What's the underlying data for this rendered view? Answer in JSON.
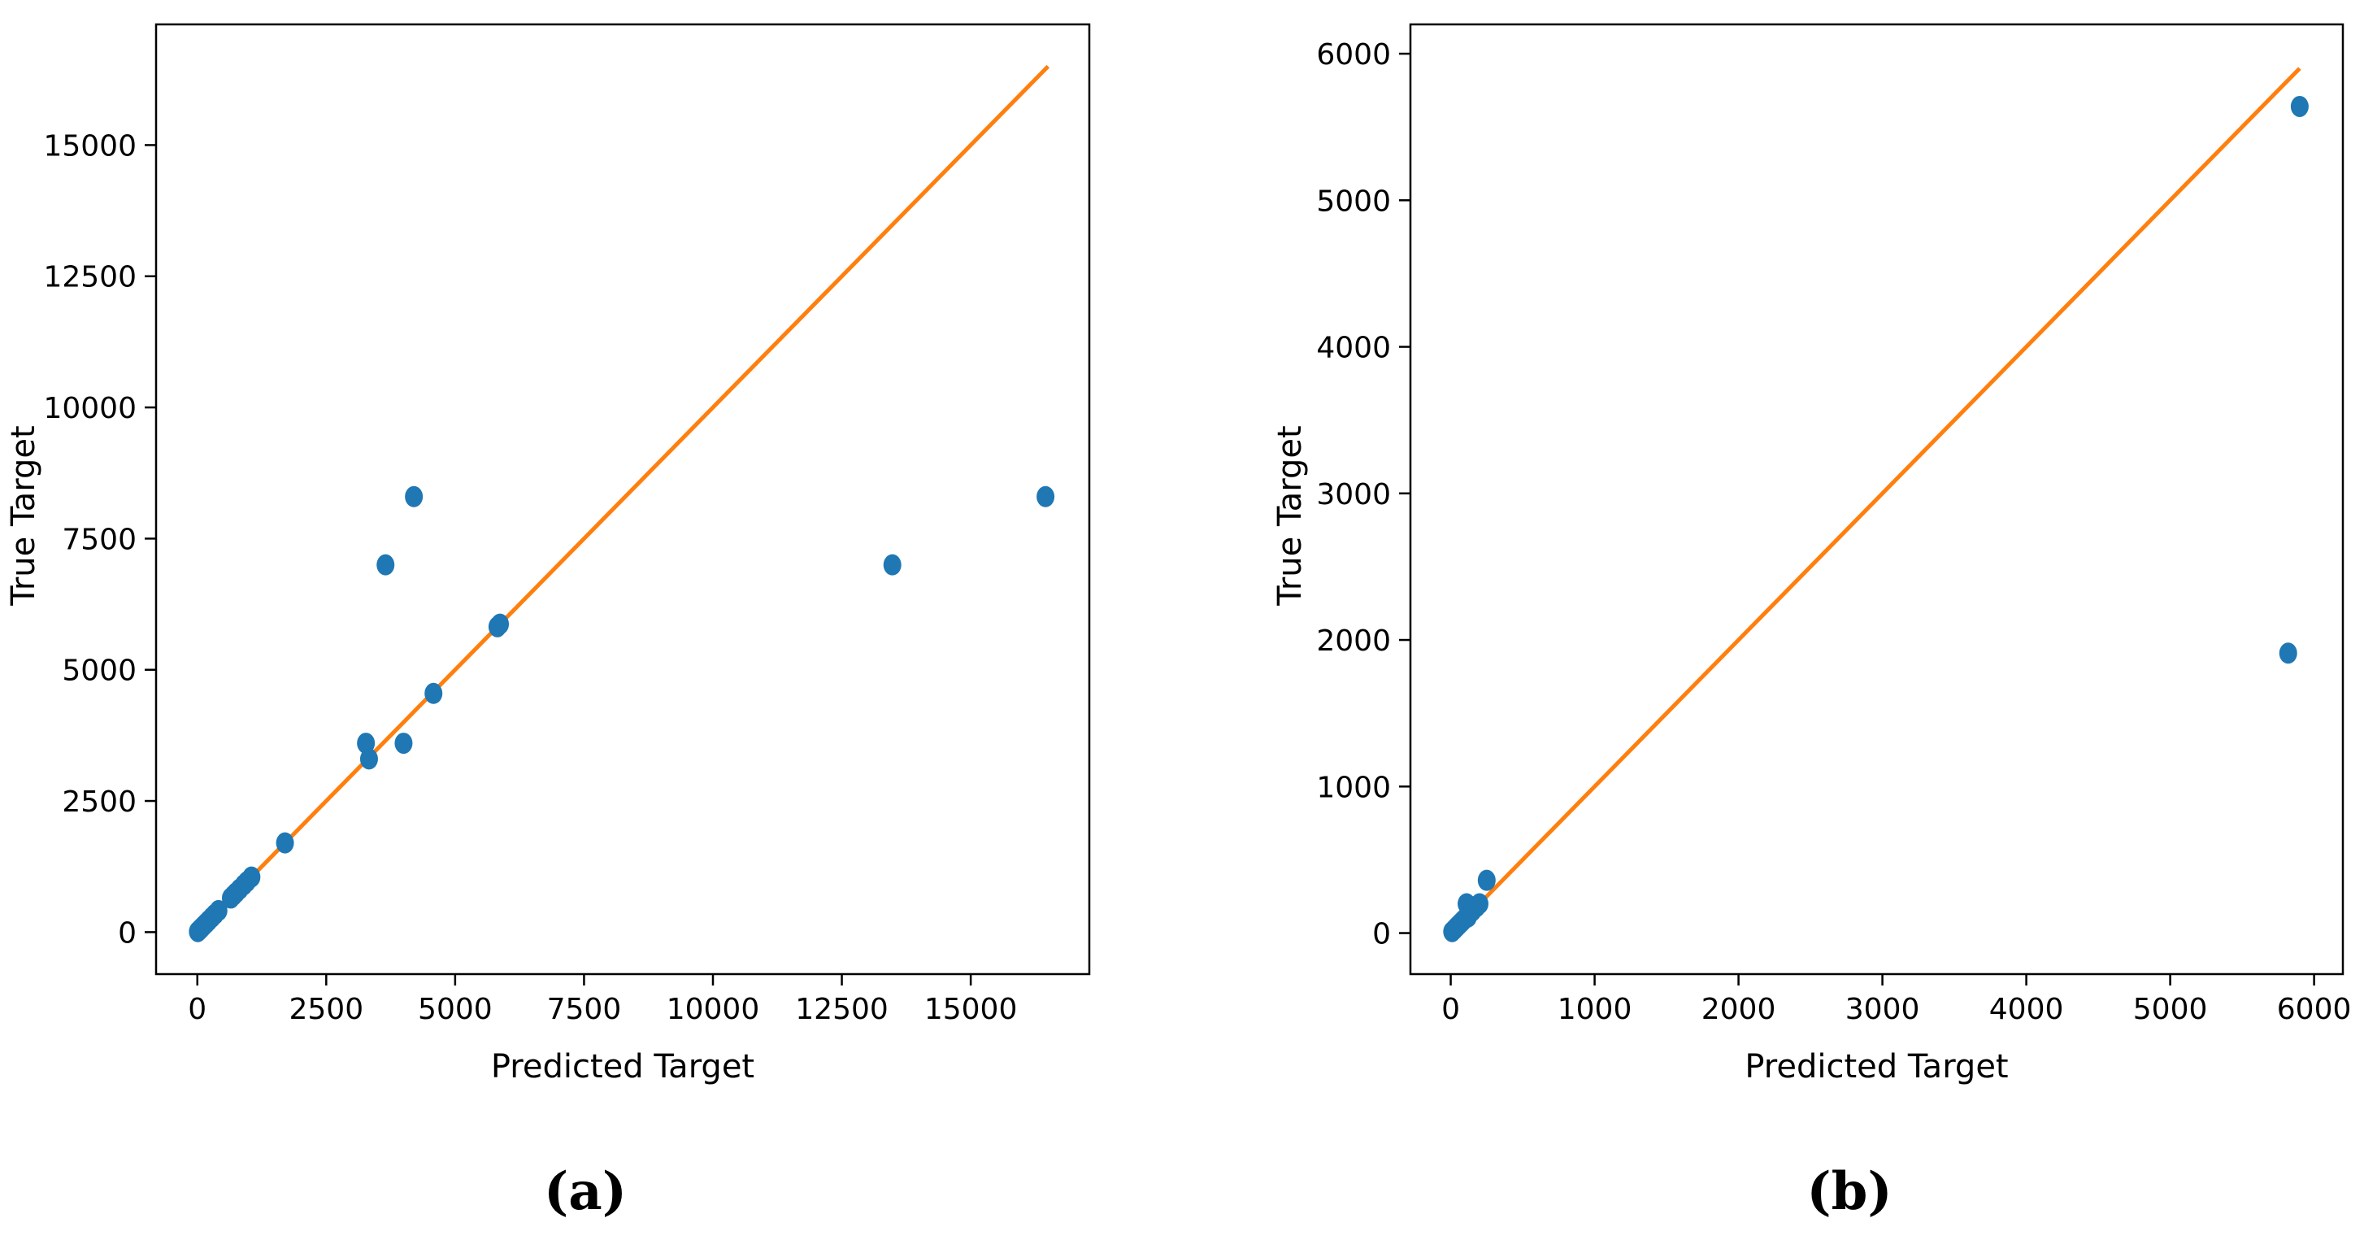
{
  "captions": [
    "(a)",
    "(b)"
  ],
  "colors": {
    "points": "#1f77b4",
    "line": "#ff7f0e",
    "axis": "#000000"
  },
  "chart_data": [
    {
      "type": "scatter",
      "title": "",
      "xlabel": "Predicted Target",
      "ylabel": "True Target",
      "xlim": [
        -800,
        17300
      ],
      "ylim": [
        -800,
        17300
      ],
      "xticks": [
        0,
        2500,
        5000,
        7500,
        10000,
        12500,
        15000
      ],
      "yticks": [
        0,
        2500,
        5000,
        7500,
        10000,
        12500,
        15000
      ],
      "grid": false,
      "reference_line": {
        "x": [
          0,
          16500
        ],
        "y": [
          0,
          16500
        ]
      },
      "series": [
        {
          "x": [
            10,
            30,
            60,
            90,
            130,
            170,
            220,
            280,
            340,
            410,
            650,
            700,
            750,
            820,
            900,
            960,
            1050,
            1700,
            3270,
            3330,
            3650,
            4000,
            4200,
            4580,
            5820,
            5870,
            13480,
            16450
          ],
          "y": [
            10,
            30,
            60,
            90,
            130,
            170,
            220,
            280,
            340,
            410,
            650,
            700,
            750,
            820,
            900,
            960,
            1050,
            1700,
            3600,
            3300,
            7000,
            3600,
            8300,
            4550,
            5820,
            5870,
            7000,
            8300
          ]
        }
      ]
    },
    {
      "type": "scatter",
      "title": "",
      "xlabel": "Predicted Target",
      "ylabel": "True Target",
      "xlim": [
        -280,
        6200
      ],
      "ylim": [
        -280,
        6200
      ],
      "xticks": [
        0,
        1000,
        2000,
        3000,
        4000,
        5000,
        6000
      ],
      "yticks": [
        0,
        1000,
        2000,
        3000,
        4000,
        5000,
        6000
      ],
      "grid": false,
      "reference_line": {
        "x": [
          0,
          5900
        ],
        "y": [
          0,
          5900
        ]
      },
      "series": [
        {
          "x": [
            10,
            25,
            40,
            55,
            70,
            85,
            100,
            110,
            120,
            150,
            180,
            200,
            250,
            5820,
            5900
          ],
          "y": [
            10,
            25,
            40,
            55,
            70,
            85,
            100,
            200,
            110,
            150,
            180,
            200,
            360,
            1910,
            5640
          ]
        }
      ]
    }
  ]
}
